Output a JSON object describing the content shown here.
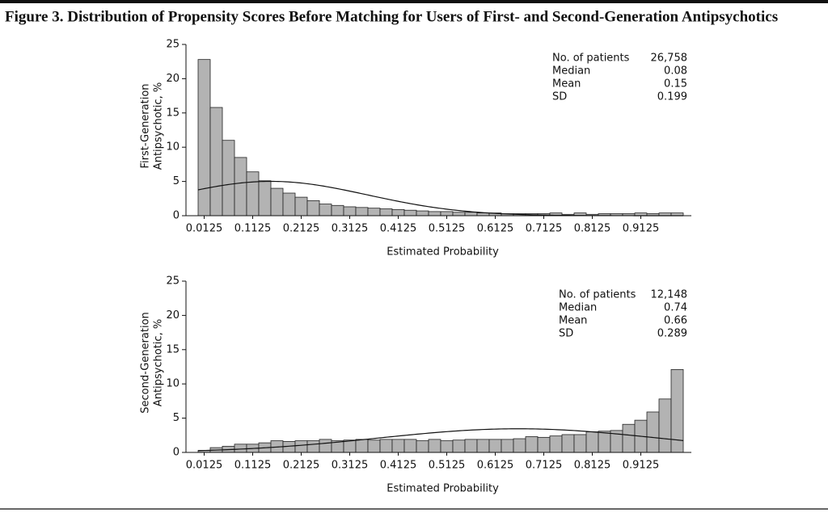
{
  "title": "Figure 3. Distribution of Propensity Scores Before Matching for Users of First- and Second-Generation Antipsychotics",
  "chart_data": [
    {
      "type": "histogram",
      "ylabel": [
        "First-Generation",
        "Antipsychotic, %"
      ],
      "xlabel": "Estimated Probability",
      "bins": [
        0,
        0.025,
        0.05,
        0.075,
        0.1,
        0.125,
        0.15,
        0.175,
        0.2,
        0.225,
        0.25,
        0.275,
        0.3,
        0.325,
        0.35,
        0.375,
        0.4,
        0.425,
        0.45,
        0.475,
        0.5,
        0.525,
        0.55,
        0.575,
        0.6,
        0.625,
        0.65,
        0.675,
        0.7,
        0.725,
        0.75,
        0.775,
        0.8,
        0.825,
        0.85,
        0.875,
        0.9,
        0.925,
        0.95,
        0.975,
        1
      ],
      "values": [
        22.8,
        15.8,
        11.0,
        8.5,
        6.4,
        5.1,
        4.0,
        3.3,
        2.7,
        2.2,
        1.7,
        1.5,
        1.3,
        1.2,
        1.1,
        1.0,
        0.9,
        0.8,
        0.7,
        0.6,
        0.6,
        0.5,
        0.5,
        0.4,
        0.4,
        0.3,
        0.3,
        0.3,
        0.3,
        0.4,
        0.2,
        0.4,
        0.2,
        0.3,
        0.3,
        0.3,
        0.4,
        0.3,
        0.4,
        0.4
      ],
      "color": "#b3b3b3",
      "xlim": [
        0,
        1
      ],
      "xticks": [
        0.0125,
        0.1125,
        0.2125,
        0.3125,
        0.4125,
        0.5125,
        0.6125,
        0.7125,
        0.8125,
        0.9125
      ],
      "ylim": [
        0,
        25
      ],
      "yticks": [
        0,
        5,
        10,
        15,
        20,
        25
      ],
      "stats": {
        "labels": [
          "No. of patients",
          "Median",
          "Mean",
          "SD"
        ],
        "values": [
          26758,
          0.08,
          0.15,
          0.199
        ],
        "value_labels": [
          "26,758",
          "0.08",
          "0.15",
          "0.199"
        ]
      }
    },
    {
      "type": "histogram",
      "ylabel": [
        "Second-Generation",
        "Antipsychotic, %"
      ],
      "xlabel": "Estimated Probability",
      "bins": [
        0,
        0.025,
        0.05,
        0.075,
        0.1,
        0.125,
        0.15,
        0.175,
        0.2,
        0.225,
        0.25,
        0.275,
        0.3,
        0.325,
        0.35,
        0.375,
        0.4,
        0.425,
        0.45,
        0.475,
        0.5,
        0.525,
        0.55,
        0.575,
        0.6,
        0.625,
        0.65,
        0.675,
        0.7,
        0.725,
        0.75,
        0.775,
        0.8,
        0.825,
        0.85,
        0.875,
        0.9,
        0.925,
        0.95,
        0.975,
        1
      ],
      "values": [
        0.3,
        0.7,
        0.9,
        1.2,
        1.2,
        1.4,
        1.7,
        1.6,
        1.7,
        1.7,
        1.9,
        1.7,
        1.8,
        1.9,
        1.8,
        1.9,
        1.9,
        1.9,
        1.7,
        1.9,
        1.7,
        1.8,
        1.9,
        1.9,
        1.9,
        1.9,
        2.0,
        2.3,
        2.2,
        2.4,
        2.6,
        2.6,
        3.0,
        3.1,
        3.2,
        4.1,
        4.7,
        5.9,
        7.8,
        12.1
      ],
      "color": "#b3b3b3",
      "xlim": [
        0,
        1
      ],
      "xticks": [
        0.0125,
        0.1125,
        0.2125,
        0.3125,
        0.4125,
        0.5125,
        0.6125,
        0.7125,
        0.8125,
        0.9125
      ],
      "ylim": [
        0,
        25
      ],
      "yticks": [
        0,
        5,
        10,
        15,
        20,
        25
      ],
      "stats": {
        "labels": [
          "No. of patients",
          "Median",
          "Mean",
          "SD"
        ],
        "values": [
          12148,
          0.74,
          0.66,
          0.289
        ],
        "value_labels": [
          "12,148",
          "0.74",
          "0.66",
          "0.289"
        ]
      }
    }
  ]
}
